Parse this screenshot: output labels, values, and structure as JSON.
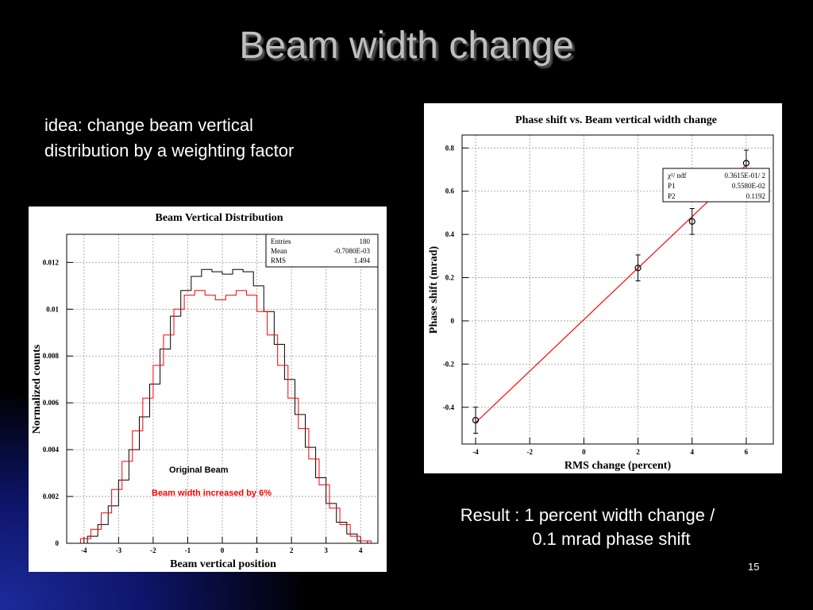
{
  "slide": {
    "title": "Beam width change",
    "idea_line1": "idea: change beam vertical",
    "idea_line2": "distribution by a weighting factor",
    "result_line1": "Result : 1 percent width change /",
    "result_line2": "0.1 mrad phase shift",
    "page_number": "15"
  },
  "colors": {
    "background": "#000000",
    "title": "#bfbfbf",
    "original_series": "#000000",
    "increased_series": "#ff0000",
    "fit_line": "#ff0000"
  },
  "chart_data": [
    {
      "type": "line",
      "title": "Beam Vertical Distribution",
      "xlabel": "Beam vertical position",
      "ylabel": "Normalized counts",
      "xlim": [
        -4.5,
        4.5
      ],
      "ylim": [
        0,
        0.0132
      ],
      "grid": true,
      "x_ticks": [
        "-4",
        "-3",
        "-2",
        "-1",
        "0",
        "1",
        "2",
        "3",
        "4"
      ],
      "y_ticks": [
        "0",
        "0.002",
        "0.004",
        "0.006",
        "0.008",
        "0.01",
        "0.012"
      ],
      "stats_box": {
        "rows": [
          {
            "label": "Entries",
            "value": "180"
          },
          {
            "label": "Mean",
            "value": "-0.7080E-03"
          },
          {
            "label": "RMS",
            "value": "1.494"
          }
        ]
      },
      "annotations": [
        "Original Beam",
        "Beam width increased by 6%"
      ],
      "series": [
        {
          "name": "Original Beam",
          "style": "step",
          "x": [
            -4.2,
            -3.9,
            -3.6,
            -3.3,
            -3.0,
            -2.7,
            -2.4,
            -2.1,
            -1.8,
            -1.5,
            -1.2,
            -0.9,
            -0.6,
            -0.3,
            0.0,
            0.3,
            0.6,
            0.9,
            1.2,
            1.5,
            1.8,
            2.1,
            2.4,
            2.7,
            3.0,
            3.3,
            3.6,
            3.9,
            4.2
          ],
          "y": [
            0.0,
            0.0003,
            0.0008,
            0.0016,
            0.0027,
            0.004,
            0.0054,
            0.0068,
            0.0083,
            0.0097,
            0.0108,
            0.0114,
            0.0117,
            0.0116,
            0.0115,
            0.0117,
            0.0116,
            0.011,
            0.0099,
            0.0085,
            0.007,
            0.0055,
            0.0041,
            0.0028,
            0.0017,
            0.0009,
            0.0004,
            0.0001,
            0.0
          ]
        },
        {
          "name": "Beam width increased by 6%",
          "style": "step",
          "x": [
            -4.4,
            -4.1,
            -3.8,
            -3.5,
            -3.2,
            -2.9,
            -2.6,
            -2.3,
            -2.0,
            -1.7,
            -1.4,
            -1.1,
            -0.8,
            -0.5,
            -0.2,
            0.1,
            0.4,
            0.7,
            1.0,
            1.3,
            1.6,
            1.9,
            2.2,
            2.5,
            2.8,
            3.1,
            3.4,
            3.7,
            4.0,
            4.3
          ],
          "y": [
            0.0,
            0.0002,
            0.0006,
            0.0013,
            0.0023,
            0.0035,
            0.0048,
            0.0062,
            0.0076,
            0.0089,
            0.01,
            0.0106,
            0.0108,
            0.0106,
            0.0104,
            0.0106,
            0.0108,
            0.0106,
            0.0099,
            0.0089,
            0.0076,
            0.0062,
            0.0049,
            0.0036,
            0.0025,
            0.0015,
            0.0008,
            0.0003,
            0.0001,
            0.0
          ]
        }
      ]
    },
    {
      "type": "scatter",
      "title": "Phase shift vs. Beam vertical width change",
      "xlabel": "RMS change (percent)",
      "ylabel": "Phase shift (mrad)",
      "xlim": [
        -4.5,
        7.0
      ],
      "ylim": [
        -0.57,
        0.86
      ],
      "grid": true,
      "x_ticks": [
        "-4",
        "-2",
        "0",
        "2",
        "4",
        "6"
      ],
      "y_ticks": [
        "-0.4",
        "-0.2",
        "0",
        "0.2",
        "0.4",
        "0.6",
        "0.8"
      ],
      "fit_box": {
        "rows": [
          {
            "label": "χ²/ ndf",
            "value": "0.3615E-01/   2"
          },
          {
            "label": "P1",
            "value": "0.5580E-02"
          },
          {
            "label": "P2",
            "value": "0.1192"
          }
        ]
      },
      "points": [
        {
          "x": -4,
          "y": -0.46,
          "err": 0.06
        },
        {
          "x": 2,
          "y": 0.245,
          "err": 0.06
        },
        {
          "x": 4,
          "y": 0.46,
          "err": 0.06
        },
        {
          "x": 6,
          "y": 0.73,
          "err": 0.06
        }
      ],
      "fit": {
        "intercept": 0.0056,
        "slope": 0.1192
      }
    }
  ]
}
